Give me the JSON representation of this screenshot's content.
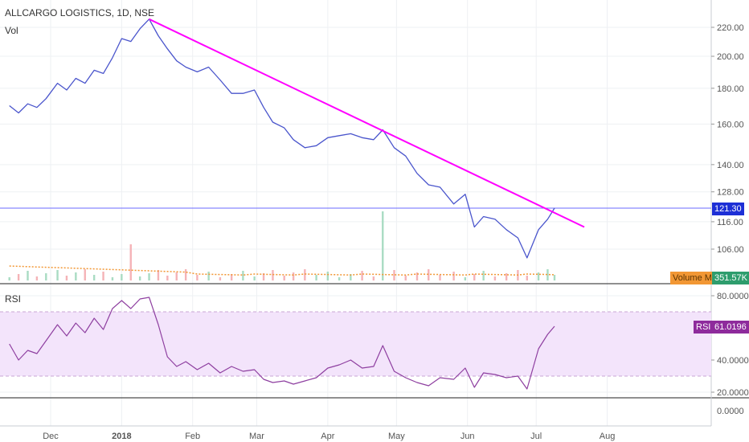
{
  "header": {
    "title": "ALLCARGO LOGISTICS, 1D, NSE",
    "volume_label": "Vol",
    "rsi_label": "RSI"
  },
  "tags": {
    "last_price": "121.30",
    "volume_ma_label": "Volume MA",
    "volume_ma_value": "351.57K",
    "rsi_name": "RSI",
    "rsi_value": "61.0196"
  },
  "colors": {
    "price_line": "#4a55cc",
    "trendline": "#ff00ff",
    "horizontal_level": "#6b6bff",
    "rsi_line": "#8e3fa0",
    "rsi_band": "#f3e4fb",
    "volume_up": "#a9dcc3",
    "volume_down": "#f5b3b7",
    "volume_ma": "#f29734"
  },
  "chart_data": [
    {
      "type": "line",
      "name": "price",
      "title": "ALLCARGO LOGISTICS, 1D, NSE",
      "x_axis_type": "date",
      "x_ticks": [
        "Dec",
        "2018",
        "Feb",
        "Mar",
        "Apr",
        "May",
        "Jun",
        "Jul",
        "Aug"
      ],
      "x_tick_dates": [
        "2017-12-01",
        "2018-01-01",
        "2018-02-01",
        "2018-03-01",
        "2018-04-01",
        "2018-05-01",
        "2018-06-01",
        "2018-07-01",
        "2018-08-01"
      ],
      "y_scale": "log",
      "y_ticks": [
        106,
        116,
        128,
        140,
        160,
        180,
        200,
        220
      ],
      "ylim": [
        100,
        235
      ],
      "series": [
        {
          "values": [
            [
              "2017-11-13",
              170
            ],
            [
              "2017-11-17",
              166
            ],
            [
              "2017-11-21",
              171
            ],
            [
              "2017-11-25",
              169
            ],
            [
              "2017-11-29",
              174
            ],
            [
              "2017-12-04",
              183
            ],
            [
              "2017-12-08",
              179
            ],
            [
              "2017-12-12",
              186
            ],
            [
              "2017-12-16",
              183
            ],
            [
              "2017-12-20",
              191
            ],
            [
              "2017-12-24",
              189
            ],
            [
              "2017-12-28",
              199
            ],
            [
              "2018-01-01",
              212
            ],
            [
              "2018-01-05",
              210
            ],
            [
              "2018-01-09",
              219
            ],
            [
              "2018-01-13",
              226
            ],
            [
              "2018-01-17",
              214
            ],
            [
              "2018-01-21",
              205
            ],
            [
              "2018-01-25",
              197
            ],
            [
              "2018-01-29",
              193
            ],
            [
              "2018-02-03",
              190
            ],
            [
              "2018-02-08",
              193
            ],
            [
              "2018-02-13",
              185
            ],
            [
              "2018-02-18",
              177
            ],
            [
              "2018-02-23",
              177
            ],
            [
              "2018-02-28",
              179
            ],
            [
              "2018-03-04",
              169
            ],
            [
              "2018-03-08",
              161
            ],
            [
              "2018-03-13",
              158
            ],
            [
              "2018-03-17",
              152
            ],
            [
              "2018-03-22",
              148
            ],
            [
              "2018-03-27",
              149
            ],
            [
              "2018-04-01",
              153
            ],
            [
              "2018-04-06",
              154
            ],
            [
              "2018-04-11",
              155
            ],
            [
              "2018-04-16",
              153
            ],
            [
              "2018-04-21",
              152
            ],
            [
              "2018-04-25",
              157
            ],
            [
              "2018-04-30",
              148
            ],
            [
              "2018-05-05",
              144
            ],
            [
              "2018-05-10",
              136
            ],
            [
              "2018-05-15",
              131
            ],
            [
              "2018-05-20",
              130
            ],
            [
              "2018-05-26",
              123
            ],
            [
              "2018-05-31",
              127
            ],
            [
              "2018-06-04",
              114
            ],
            [
              "2018-06-08",
              118
            ],
            [
              "2018-06-13",
              117
            ],
            [
              "2018-06-18",
              113
            ],
            [
              "2018-06-23",
              110
            ],
            [
              "2018-06-27",
              103
            ],
            [
              "2018-07-02",
              113
            ],
            [
              "2018-07-06",
              117
            ],
            [
              "2018-07-09",
              121.3
            ]
          ],
          "last_value": 121.3
        }
      ],
      "annotations": [
        {
          "kind": "trendline",
          "from": [
            "2018-01-13",
            226
          ],
          "to": [
            "2018-07-22",
            114
          ]
        },
        {
          "kind": "horizontal_line",
          "value": 121.3
        }
      ]
    },
    {
      "type": "bar",
      "name": "volume",
      "label": "Vol",
      "moving_average_label": "Volume MA",
      "moving_average_last": "351.57K",
      "highlights": [
        {
          "date": "2018-04-25",
          "note": "volume spike"
        },
        {
          "date": "2018-01-05",
          "note": "elevated volume"
        }
      ]
    },
    {
      "type": "line",
      "name": "RSI",
      "title": "RSI",
      "x_axis_type": "date",
      "y_ticks": [
        20,
        40,
        60,
        80
      ],
      "ylim": [
        0,
        90
      ],
      "overbought": 70,
      "oversold": 30,
      "series": [
        {
          "values": [
            [
              "2017-11-13",
              50
            ],
            [
              "2017-11-17",
              40
            ],
            [
              "2017-11-21",
              46
            ],
            [
              "2017-11-25",
              44
            ],
            [
              "2017-11-29",
              52
            ],
            [
              "2017-12-04",
              62
            ],
            [
              "2017-12-08",
              55
            ],
            [
              "2017-12-12",
              63
            ],
            [
              "2017-12-16",
              57
            ],
            [
              "2017-12-20",
              66
            ],
            [
              "2017-12-24",
              59
            ],
            [
              "2017-12-28",
              72
            ],
            [
              "2018-01-01",
              77
            ],
            [
              "2018-01-05",
              72
            ],
            [
              "2018-01-09",
              78
            ],
            [
              "2018-01-13",
              79
            ],
            [
              "2018-01-17",
              62
            ],
            [
              "2018-01-21",
              42
            ],
            [
              "2018-01-25",
              36
            ],
            [
              "2018-01-29",
              39
            ],
            [
              "2018-02-03",
              34
            ],
            [
              "2018-02-08",
              38
            ],
            [
              "2018-02-13",
              32
            ],
            [
              "2018-02-18",
              36
            ],
            [
              "2018-02-23",
              33
            ],
            [
              "2018-02-28",
              34
            ],
            [
              "2018-03-04",
              28
            ],
            [
              "2018-03-08",
              26
            ],
            [
              "2018-03-13",
              27
            ],
            [
              "2018-03-17",
              25
            ],
            [
              "2018-03-22",
              27
            ],
            [
              "2018-03-27",
              29
            ],
            [
              "2018-04-01",
              35
            ],
            [
              "2018-04-06",
              37
            ],
            [
              "2018-04-11",
              40
            ],
            [
              "2018-04-16",
              35
            ],
            [
              "2018-04-21",
              36
            ],
            [
              "2018-04-25",
              49
            ],
            [
              "2018-04-30",
              33
            ],
            [
              "2018-05-05",
              29
            ],
            [
              "2018-05-10",
              26
            ],
            [
              "2018-05-15",
              24
            ],
            [
              "2018-05-20",
              29
            ],
            [
              "2018-05-26",
              28
            ],
            [
              "2018-05-31",
              35
            ],
            [
              "2018-06-04",
              23
            ],
            [
              "2018-06-08",
              32
            ],
            [
              "2018-06-13",
              31
            ],
            [
              "2018-06-18",
              29
            ],
            [
              "2018-06-23",
              30
            ],
            [
              "2018-06-27",
              22
            ],
            [
              "2018-07-02",
              47
            ],
            [
              "2018-07-06",
              56
            ],
            [
              "2018-07-09",
              61.0196
            ]
          ],
          "last_value": 61.0196
        }
      ]
    }
  ]
}
